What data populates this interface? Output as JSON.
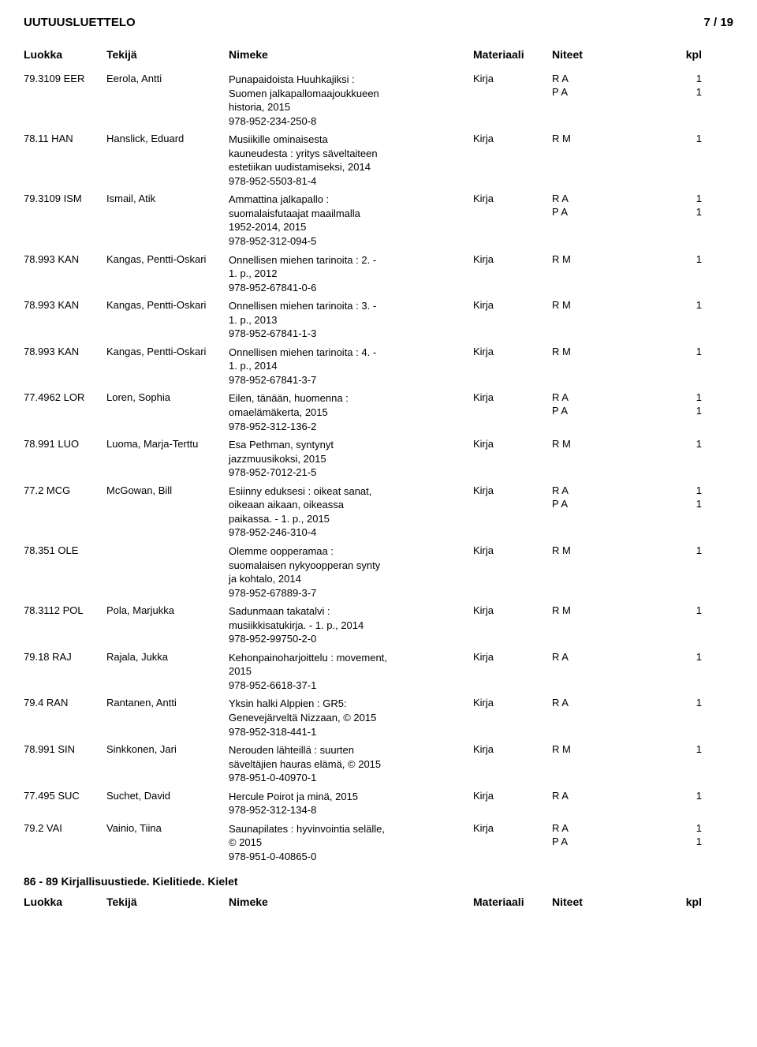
{
  "header": {
    "title": "UUTUUSLUETTELO",
    "page": "7 / 19"
  },
  "columns": {
    "class": "Luokka",
    "author": "Tekijä",
    "title": "Nimeke",
    "material": "Materiaali",
    "note": "Niteet",
    "kpl": "kpl"
  },
  "section_title": "86 - 89 Kirjallisuustiede. Kielitiede. Kielet",
  "rows": [
    {
      "class": "79.3109 EER",
      "author": "Eerola, Antti",
      "title": "Punapaidoista Huuhkajiksi :\nSuomen jalkapallomaajoukkueen\nhistoria, 2015\n978-952-234-250-8",
      "material": "Kirja",
      "lines": [
        {
          "note": "R A",
          "kpl": "1"
        },
        {
          "note": "P A",
          "kpl": "1"
        }
      ]
    },
    {
      "class": "78.11 HAN",
      "author": "Hanslick, Eduard",
      "title": "Musiikille ominaisesta\nkauneudesta : yritys säveltaiteen\nestetiikan uudistamiseksi, 2014\n978-952-5503-81-4",
      "material": "Kirja",
      "lines": [
        {
          "note": "R M",
          "kpl": "1"
        }
      ]
    },
    {
      "class": "79.3109 ISM",
      "author": "Ismail, Atik",
      "title": "Ammattina jalkapallo :\nsuomalaisfutaajat maailmalla\n1952-2014, 2015\n978-952-312-094-5",
      "material": "Kirja",
      "lines": [
        {
          "note": "R A",
          "kpl": "1"
        },
        {
          "note": "P A",
          "kpl": "1"
        }
      ]
    },
    {
      "class": "78.993 KAN",
      "author": "Kangas, Pentti-Oskari",
      "title": "Onnellisen miehen tarinoita : 2. -\n1. p., 2012\n978-952-67841-0-6",
      "material": "Kirja",
      "lines": [
        {
          "note": "R M",
          "kpl": "1"
        }
      ]
    },
    {
      "class": "78.993 KAN",
      "author": "Kangas, Pentti-Oskari",
      "title": "Onnellisen miehen tarinoita : 3. -\n1. p., 2013\n978-952-67841-1-3",
      "material": "Kirja",
      "lines": [
        {
          "note": "R M",
          "kpl": "1"
        }
      ]
    },
    {
      "class": "78.993 KAN",
      "author": "Kangas, Pentti-Oskari",
      "title": "Onnellisen miehen tarinoita : 4. -\n1. p., 2014\n978-952-67841-3-7",
      "material": "Kirja",
      "lines": [
        {
          "note": "R M",
          "kpl": "1"
        }
      ]
    },
    {
      "class": "77.4962 LOR",
      "author": "Loren, Sophia",
      "title": "Eilen, tänään, huomenna :\nomaelämäkerta, 2015\n978-952-312-136-2",
      "material": "Kirja",
      "lines": [
        {
          "note": "R A",
          "kpl": "1"
        },
        {
          "note": "P A",
          "kpl": "1"
        }
      ]
    },
    {
      "class": "78.991 LUO",
      "author": "Luoma, Marja-Terttu",
      "title": "Esa Pethman, syntynyt\njazzmuusikoksi, 2015\n978-952-7012-21-5",
      "material": "Kirja",
      "lines": [
        {
          "note": "R M",
          "kpl": "1"
        }
      ]
    },
    {
      "class": "77.2 MCG",
      "author": "McGowan, Bill",
      "title": "Esiinny eduksesi : oikeat sanat,\noikeaan aikaan, oikeassa\npaikassa. - 1. p., 2015\n978-952-246-310-4",
      "material": "Kirja",
      "lines": [
        {
          "note": "R A",
          "kpl": "1"
        },
        {
          "note": "P A",
          "kpl": "1"
        }
      ]
    },
    {
      "class": "78.351 OLE",
      "author": "",
      "title": "Olemme oopperamaa :\nsuomalaisen nykyoopperan synty\nja kohtalo, 2014\n978-952-67889-3-7",
      "material": "Kirja",
      "lines": [
        {
          "note": "R M",
          "kpl": "1"
        }
      ]
    },
    {
      "class": "78.3112 POL",
      "author": "Pola, Marjukka",
      "title": "Sadunmaan takatalvi :\nmusiikkisatukirja. - 1. p., 2014\n978-952-99750-2-0",
      "material": "Kirja",
      "lines": [
        {
          "note": "R M",
          "kpl": "1"
        }
      ]
    },
    {
      "class": "79.18 RAJ",
      "author": "Rajala, Jukka",
      "title": "Kehonpainoharjoittelu : movement,\n2015\n978-952-6618-37-1",
      "material": "Kirja",
      "lines": [
        {
          "note": "R A",
          "kpl": "1"
        }
      ]
    },
    {
      "class": "79.4 RAN",
      "author": "Rantanen, Antti",
      "title": "Yksin halki Alppien : GR5:\nGenevejärveltä Nizzaan, © 2015\n978-952-318-441-1",
      "material": "Kirja",
      "lines": [
        {
          "note": "R A",
          "kpl": "1"
        }
      ]
    },
    {
      "class": "78.991 SIN",
      "author": "Sinkkonen, Jari",
      "title": "Nerouden lähteillä : suurten\nsäveltäjien hauras elämä, © 2015\n978-951-0-40970-1",
      "material": "Kirja",
      "lines": [
        {
          "note": "R M",
          "kpl": "1"
        }
      ]
    },
    {
      "class": "77.495 SUC",
      "author": "Suchet, David",
      "title": "Hercule Poirot ja minä, 2015\n978-952-312-134-8",
      "material": "Kirja",
      "lines": [
        {
          "note": "R A",
          "kpl": "1"
        }
      ]
    },
    {
      "class": "79.2 VAI",
      "author": "Vainio, Tiina",
      "title": "Saunapilates : hyvinvointia selälle,\n© 2015\n978-951-0-40865-0",
      "material": "Kirja",
      "lines": [
        {
          "note": "R A",
          "kpl": "1"
        },
        {
          "note": "P A",
          "kpl": "1"
        }
      ]
    }
  ]
}
